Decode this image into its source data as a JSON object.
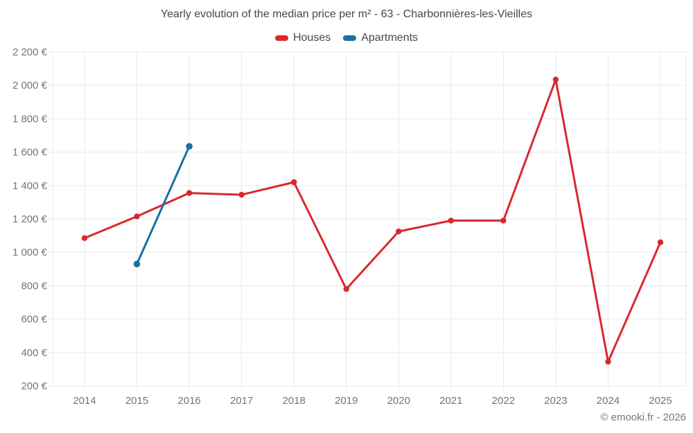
{
  "chart_data": {
    "type": "line",
    "title": "Yearly evolution of the median price per m² - 63 - Charbonnières-les-Vieilles",
    "xlabel": "",
    "ylabel": "",
    "categories": [
      "2014",
      "2015",
      "2016",
      "2017",
      "2018",
      "2019",
      "2020",
      "2021",
      "2022",
      "2023",
      "2024",
      "2025"
    ],
    "series": [
      {
        "name": "Houses",
        "color": "#d8282e",
        "values": [
          1085,
          1215,
          1355,
          1345,
          1420,
          780,
          1125,
          1190,
          1190,
          2035,
          345,
          1060
        ]
      },
      {
        "name": "Apartments",
        "color": "#19719f",
        "values": [
          null,
          930,
          1635,
          null,
          null,
          null,
          null,
          null,
          null,
          null,
          null,
          null
        ]
      }
    ],
    "ylim": [
      200,
      2200
    ],
    "y_ticks": [
      {
        "value": 200,
        "label": "200 €"
      },
      {
        "value": 400,
        "label": "400 €"
      },
      {
        "value": 600,
        "label": "600 €"
      },
      {
        "value": 800,
        "label": "800 €"
      },
      {
        "value": 1000,
        "label": "1 000 €"
      },
      {
        "value": 1200,
        "label": "1 200 €"
      },
      {
        "value": 1400,
        "label": "1 400 €"
      },
      {
        "value": 1600,
        "label": "1 600 €"
      },
      {
        "value": 1800,
        "label": "1 800 €"
      },
      {
        "value": 2000,
        "label": "2 000 €"
      },
      {
        "value": 2200,
        "label": "2 200 €"
      }
    ],
    "grid": true,
    "legend_position": "top",
    "copyright": "© emooki.fr - 2026"
  }
}
